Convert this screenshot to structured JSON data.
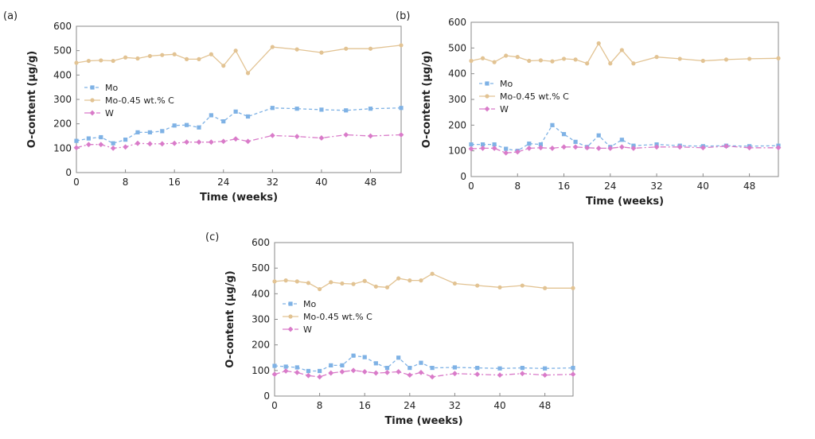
{
  "chart_data": [
    {
      "panel_label": "(a)",
      "type": "line",
      "xlabel": "Time (weeks)",
      "ylabel": "O-content (µg/g)",
      "xlim": [
        0,
        53
      ],
      "ylim": [
        0,
        600
      ],
      "xticks": [
        0,
        8,
        16,
        24,
        32,
        40,
        48
      ],
      "yticks": [
        0,
        100,
        200,
        300,
        400,
        500,
        600
      ],
      "grid": false,
      "legend_position": "center-left",
      "series": [
        {
          "name": "Mo",
          "color": "#7fb2e5",
          "dash": "dashed",
          "marker": "square",
          "x": [
            0,
            2,
            4,
            6,
            8,
            10,
            12,
            14,
            16,
            18,
            20,
            22,
            24,
            26,
            28,
            32,
            36,
            40,
            44,
            48,
            53
          ],
          "y": [
            130,
            140,
            145,
            120,
            135,
            165,
            165,
            170,
            193,
            195,
            185,
            235,
            210,
            250,
            230,
            265,
            262,
            258,
            255,
            262,
            265
          ]
        },
        {
          "name": "Mo-0.45 wt.% C",
          "color": "#e2c393",
          "dash": "solid",
          "marker": "circle",
          "x": [
            0,
            2,
            4,
            6,
            8,
            10,
            12,
            14,
            16,
            18,
            20,
            22,
            24,
            26,
            28,
            32,
            36,
            40,
            44,
            48,
            53
          ],
          "y": [
            450,
            458,
            460,
            458,
            472,
            468,
            478,
            482,
            485,
            465,
            465,
            485,
            438,
            500,
            408,
            515,
            505,
            492,
            508,
            508,
            522
          ]
        },
        {
          "name": "W",
          "color": "#d97bc9",
          "dash": "dashdot",
          "marker": "diamond",
          "x": [
            0,
            2,
            4,
            6,
            8,
            10,
            12,
            14,
            16,
            18,
            20,
            22,
            24,
            26,
            28,
            32,
            36,
            40,
            44,
            48,
            53
          ],
          "y": [
            102,
            115,
            115,
            100,
            105,
            120,
            118,
            118,
            120,
            125,
            125,
            125,
            128,
            138,
            128,
            152,
            148,
            142,
            155,
            150,
            155
          ]
        }
      ]
    },
    {
      "panel_label": "(b)",
      "type": "line",
      "xlabel": "Time (weeks)",
      "ylabel": "O-content (µg/g)",
      "xlim": [
        0,
        53
      ],
      "ylim": [
        0,
        600
      ],
      "xticks": [
        0,
        8,
        16,
        24,
        32,
        40,
        48
      ],
      "yticks": [
        0,
        100,
        200,
        300,
        400,
        500,
        600
      ],
      "grid": false,
      "legend_position": "center-left",
      "series": [
        {
          "name": "Mo",
          "color": "#7fb2e5",
          "dash": "dashed",
          "marker": "square",
          "x": [
            0,
            2,
            4,
            6,
            8,
            10,
            12,
            14,
            16,
            18,
            20,
            22,
            24,
            26,
            28,
            32,
            36,
            40,
            44,
            48,
            53
          ],
          "y": [
            125,
            125,
            125,
            108,
            100,
            128,
            125,
            200,
            165,
            135,
            115,
            160,
            115,
            143,
            120,
            125,
            120,
            118,
            120,
            118,
            120
          ]
        },
        {
          "name": "Mo-0.45 wt.% C",
          "color": "#e2c393",
          "dash": "solid",
          "marker": "circle",
          "x": [
            0,
            2,
            4,
            6,
            8,
            10,
            12,
            14,
            16,
            18,
            20,
            22,
            24,
            26,
            28,
            32,
            36,
            40,
            44,
            48,
            53
          ],
          "y": [
            450,
            460,
            445,
            470,
            465,
            450,
            452,
            448,
            458,
            455,
            440,
            518,
            440,
            492,
            440,
            465,
            458,
            450,
            455,
            458,
            460
          ]
        },
        {
          "name": "W",
          "color": "#d97bc9",
          "dash": "dashdot",
          "marker": "diamond",
          "x": [
            0,
            2,
            4,
            6,
            8,
            10,
            12,
            14,
            16,
            18,
            20,
            22,
            24,
            26,
            28,
            32,
            36,
            40,
            44,
            48,
            53
          ],
          "y": [
            108,
            110,
            110,
            92,
            96,
            110,
            112,
            110,
            115,
            115,
            112,
            110,
            110,
            115,
            110,
            115,
            115,
            112,
            118,
            112,
            112
          ]
        }
      ]
    },
    {
      "panel_label": "(c)",
      "type": "line",
      "xlabel": "Time (weeks)",
      "ylabel": "O-content (µg/g)",
      "xlim": [
        0,
        53
      ],
      "ylim": [
        0,
        600
      ],
      "xticks": [
        0,
        8,
        16,
        24,
        32,
        40,
        48
      ],
      "yticks": [
        0,
        100,
        200,
        300,
        400,
        500,
        600
      ],
      "grid": false,
      "legend_position": "center-left",
      "series": [
        {
          "name": "Mo",
          "color": "#7fb2e5",
          "dash": "dashed",
          "marker": "square",
          "x": [
            0,
            2,
            4,
            6,
            8,
            10,
            12,
            14,
            16,
            18,
            20,
            22,
            24,
            26,
            28,
            32,
            36,
            40,
            44,
            48,
            53
          ],
          "y": [
            118,
            115,
            112,
            98,
            98,
            120,
            120,
            158,
            152,
            128,
            110,
            150,
            110,
            130,
            110,
            112,
            110,
            108,
            110,
            108,
            110
          ]
        },
        {
          "name": "Mo-0.45 wt.% C",
          "color": "#e2c393",
          "dash": "solid",
          "marker": "circle",
          "x": [
            0,
            2,
            4,
            6,
            8,
            10,
            12,
            14,
            16,
            18,
            20,
            22,
            24,
            26,
            28,
            32,
            36,
            40,
            44,
            48,
            53
          ],
          "y": [
            448,
            452,
            448,
            442,
            418,
            445,
            440,
            438,
            450,
            428,
            425,
            460,
            452,
            452,
            478,
            440,
            432,
            425,
            432,
            422,
            422
          ]
        },
        {
          "name": "W",
          "color": "#d97bc9",
          "dash": "dashdot",
          "marker": "diamond",
          "x": [
            0,
            2,
            4,
            6,
            8,
            10,
            12,
            14,
            16,
            18,
            20,
            22,
            24,
            26,
            28,
            32,
            36,
            40,
            44,
            48,
            53
          ],
          "y": [
            85,
            98,
            92,
            80,
            75,
            90,
            95,
            100,
            95,
            90,
            92,
            95,
            82,
            92,
            75,
            88,
            85,
            82,
            88,
            82,
            85
          ]
        }
      ]
    }
  ]
}
